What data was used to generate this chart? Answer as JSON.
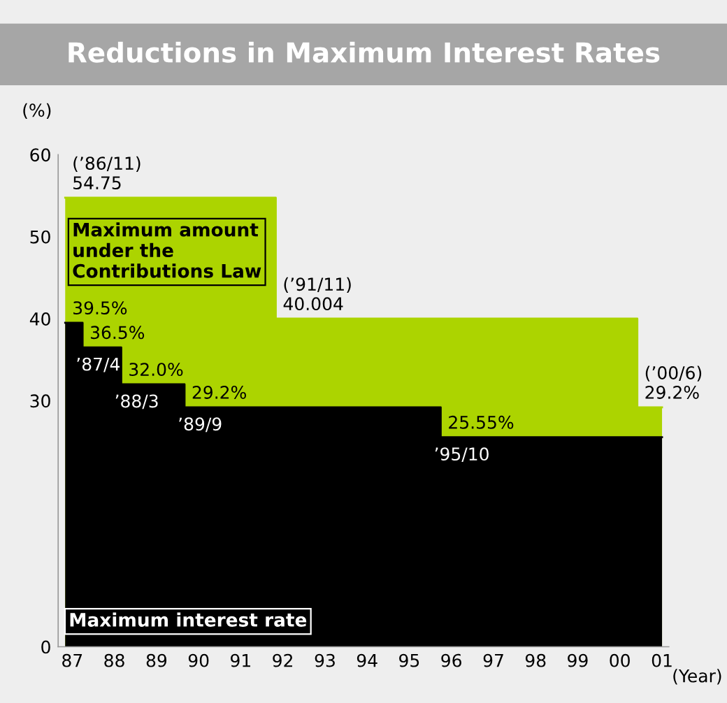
{
  "chart_data": {
    "type": "area",
    "title": "Reductions in Maximum Interest Rates",
    "ylabel": "(%)",
    "xlabel": "(Year)",
    "series": [
      {
        "name": "Maximum amount\nunder the\nContributions Law",
        "color": "#acd400",
        "x": [
          "1986-11",
          "1991-11",
          "1991-11",
          "2000-06",
          "2000-06",
          "2001-01"
        ],
        "values": [
          54.75,
          54.75,
          40.004,
          40.004,
          29.2,
          29.2
        ],
        "value_labels": [
          "(’86/11)\n54.75",
          null,
          "(’91/11)\n40.004",
          null,
          "(’00/6)\n29.2%",
          null
        ]
      },
      {
        "name": "Maximum interest rate",
        "color": "#000000",
        "x": [
          "1986-11",
          "1987-04",
          "1987-04",
          "1988-03",
          "1988-03",
          "1989-09",
          "1989-09",
          "1995-10",
          "1995-10",
          "2001-01"
        ],
        "values": [
          39.5,
          39.5,
          36.5,
          36.5,
          32.0,
          32.0,
          29.2,
          29.2,
          25.55,
          25.55
        ],
        "value_labels": [
          "39.5%",
          null,
          "36.5%",
          null,
          "32.0%",
          null,
          "29.2%",
          null,
          "25.55%",
          null
        ]
      }
    ],
    "annotations": [
      {
        "text": "’87/4",
        "x": "1987-04",
        "y": 36.5
      },
      {
        "text": "’88/3",
        "x": "1988-03",
        "y": 32.0
      },
      {
        "text": "’89/9",
        "x": "1989-09",
        "y": 29.2
      },
      {
        "text": "’95/10",
        "x": "1995-10",
        "y": 25.55
      }
    ],
    "xlim": [
      "1986-09",
      "2001-03"
    ],
    "xticks": [
      {
        "value": "1987",
        "label": "87"
      },
      {
        "value": "1988",
        "label": "88"
      },
      {
        "value": "1989",
        "label": "89"
      },
      {
        "value": "1990",
        "label": "90"
      },
      {
        "value": "1991",
        "label": "91"
      },
      {
        "value": "1992",
        "label": "92"
      },
      {
        "value": "1993",
        "label": "93"
      },
      {
        "value": "1994",
        "label": "94"
      },
      {
        "value": "1995",
        "label": "95"
      },
      {
        "value": "1996",
        "label": "96"
      },
      {
        "value": "1997",
        "label": "97"
      },
      {
        "value": "1998",
        "label": "98"
      },
      {
        "value": "1999",
        "label": "99"
      },
      {
        "value": "2000",
        "label": "00"
      },
      {
        "value": "2001",
        "label": "01"
      }
    ],
    "ylim": [
      0,
      60
    ],
    "yticks": [
      0,
      30,
      40,
      50,
      60
    ],
    "grid": false,
    "legend": false
  }
}
